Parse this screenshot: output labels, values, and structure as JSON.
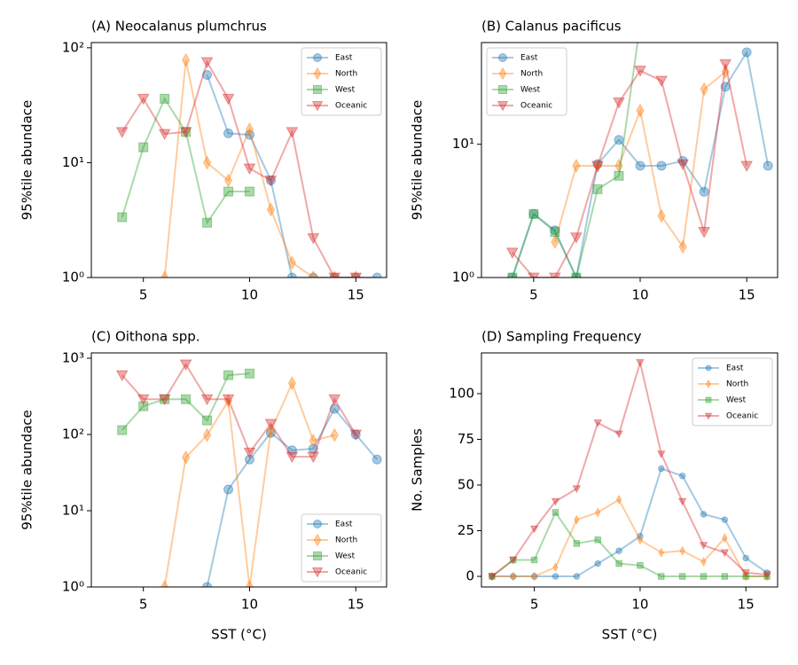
{
  "chart_data": [
    {
      "type": "line",
      "title": "(A) Neocalanus plumchrus",
      "ylabel": "95%tile abundace",
      "log_y": true,
      "x": [
        3,
        4,
        5,
        6,
        7,
        8,
        9,
        10,
        11,
        12,
        13,
        14,
        15,
        16
      ],
      "xlim": [
        2.55,
        16.45
      ],
      "xticks": [
        5,
        10,
        15
      ],
      "ylim": [
        1,
        111
      ],
      "yticks": [
        {
          "value": 1,
          "label": "10⁰"
        },
        {
          "value": 10,
          "label": "10¹"
        },
        {
          "value": 100,
          "label": "10²"
        }
      ],
      "legend": "upper right",
      "series": [
        {
          "name": "East",
          "color": "#1f77b4",
          "marker": "circle",
          "values": [
            null,
            null,
            null,
            null,
            null,
            58,
            18,
            17.5,
            7,
            1,
            1,
            1,
            1,
            1
          ]
        },
        {
          "name": "North",
          "color": "#ff7f0e",
          "marker": "thin_diamond",
          "values": [
            null,
            null,
            null,
            1,
            78,
            10,
            7,
            19.5,
            3.9,
            1.35,
            1,
            1,
            1,
            null
          ]
        },
        {
          "name": "West",
          "color": "#2ca02c",
          "marker": "square",
          "values": [
            null,
            3.35,
            13.6,
            36,
            18.5,
            3,
            5.6,
            5.6,
            null,
            null,
            null,
            null,
            null,
            null
          ]
        },
        {
          "name": "Oceanic",
          "color": "#d62728",
          "marker": "triangle_down",
          "values": [
            null,
            18.5,
            36,
            17.8,
            18.5,
            75,
            36,
            8.9,
            7,
            18.5,
            2.2,
            1,
            1,
            null
          ]
        }
      ]
    },
    {
      "type": "line",
      "title": "(B) Calanus pacificus",
      "ylabel": "95%tile abundace",
      "log_y": true,
      "x": [
        3,
        4,
        5,
        6,
        7,
        8,
        9,
        10,
        11,
        12,
        13,
        14,
        15,
        16
      ],
      "xlim": [
        2.55,
        16.45
      ],
      "xticks": [
        5,
        10,
        15
      ],
      "ylim": [
        1,
        58
      ],
      "yticks": [
        {
          "value": 1,
          "label": "10⁰"
        },
        {
          "value": 10,
          "label": "10¹"
        }
      ],
      "legend": "upper left",
      "series": [
        {
          "name": "East",
          "color": "#1f77b4",
          "marker": "circle",
          "values": [
            null,
            1,
            3,
            2.26,
            1,
            7.1,
            10.8,
            6.9,
            6.9,
            7.5,
            4.4,
            27,
            49,
            6.9
          ]
        },
        {
          "name": "North",
          "color": "#ff7f0e",
          "marker": "thin_diamond",
          "values": [
            null,
            null,
            null,
            1.85,
            6.9,
            6.9,
            6.9,
            17.9,
            2.9,
            1.7,
            25.9,
            35,
            null,
            null
          ]
        },
        {
          "name": "West",
          "color": "#2ca02c",
          "marker": "square",
          "values": [
            null,
            1,
            3,
            2.2,
            1,
            4.6,
            5.8,
            80,
            null,
            null,
            null,
            null,
            null,
            null
          ]
        },
        {
          "name": "Oceanic",
          "color": "#d62728",
          "marker": "triangle_down",
          "values": [
            null,
            1.54,
            1,
            1,
            2,
            6.9,
            20.6,
            35.7,
            30,
            7.1,
            2.2,
            40,
            6.9,
            null
          ]
        }
      ]
    },
    {
      "type": "line",
      "title": "(C) Oithona spp.",
      "ylabel": "95%tile abundace",
      "xlabel": "SST (°C)",
      "log_y": true,
      "x": [
        3,
        4,
        5,
        6,
        7,
        8,
        9,
        10,
        11,
        12,
        13,
        14,
        15,
        16
      ],
      "xlim": [
        2.55,
        16.45
      ],
      "xticks": [
        5,
        10,
        15
      ],
      "ylim": [
        1,
        1175
      ],
      "yticks": [
        {
          "value": 1,
          "label": "10⁰"
        },
        {
          "value": 10,
          "label": "10¹"
        },
        {
          "value": 100,
          "label": "10²"
        },
        {
          "value": 1000,
          "label": "10³"
        }
      ],
      "legend": "lower right",
      "series": [
        {
          "name": "East",
          "color": "#1f77b4",
          "marker": "circle",
          "values": [
            null,
            null,
            null,
            null,
            null,
            1,
            19,
            47,
            105,
            62,
            65,
            217,
            100,
            47
          ]
        },
        {
          "name": "North",
          "color": "#ff7f0e",
          "marker": "thin_diamond",
          "values": [
            null,
            null,
            null,
            1,
            50,
            98,
            276,
            1,
            111,
            470,
            83,
            98,
            null,
            null
          ]
        },
        {
          "name": "West",
          "color": "#2ca02c",
          "marker": "square",
          "values": [
            null,
            114,
            235,
            290,
            290,
            153,
            600,
            630,
            null,
            null,
            null,
            null,
            null,
            null
          ]
        },
        {
          "name": "Oceanic",
          "color": "#d62728",
          "marker": "triangle_down",
          "values": [
            null,
            600,
            290,
            290,
            830,
            290,
            290,
            58,
            138,
            51,
            51,
            290,
            100,
            null
          ]
        }
      ]
    },
    {
      "type": "line",
      "title": "(D) Sampling Frequency",
      "ylabel": "No. Samples",
      "xlabel": "SST (°C)",
      "log_y": false,
      "x": [
        3,
        4,
        5,
        6,
        7,
        8,
        9,
        10,
        11,
        12,
        13,
        14,
        15,
        16
      ],
      "xlim": [
        2.5,
        16.5
      ],
      "xticks": [
        5,
        10,
        15
      ],
      "ylim": [
        -5.8,
        122.3
      ],
      "yticks": [
        0,
        25,
        50,
        75,
        100
      ],
      "legend": "upper right",
      "series": [
        {
          "name": "East",
          "color": "#1f77b4",
          "marker": "circle",
          "values": [
            0,
            0,
            0,
            0,
            0,
            7,
            14,
            22,
            59,
            55,
            34,
            31,
            10,
            2
          ]
        },
        {
          "name": "North",
          "color": "#ff7f0e",
          "marker": "thin_diamond",
          "values": [
            0,
            0,
            0,
            5,
            31,
            35,
            42,
            20,
            13,
            14,
            8,
            21,
            0,
            0
          ]
        },
        {
          "name": "West",
          "color": "#2ca02c",
          "marker": "square",
          "values": [
            0,
            9,
            9,
            35,
            18,
            20,
            7,
            6,
            0,
            0,
            0,
            0,
            0,
            0
          ]
        },
        {
          "name": "Oceanic",
          "color": "#d62728",
          "marker": "triangle_down",
          "values": [
            0,
            9,
            26,
            41,
            48,
            84,
            78,
            117,
            67,
            41,
            17,
            13,
            2,
            1
          ]
        }
      ]
    }
  ]
}
